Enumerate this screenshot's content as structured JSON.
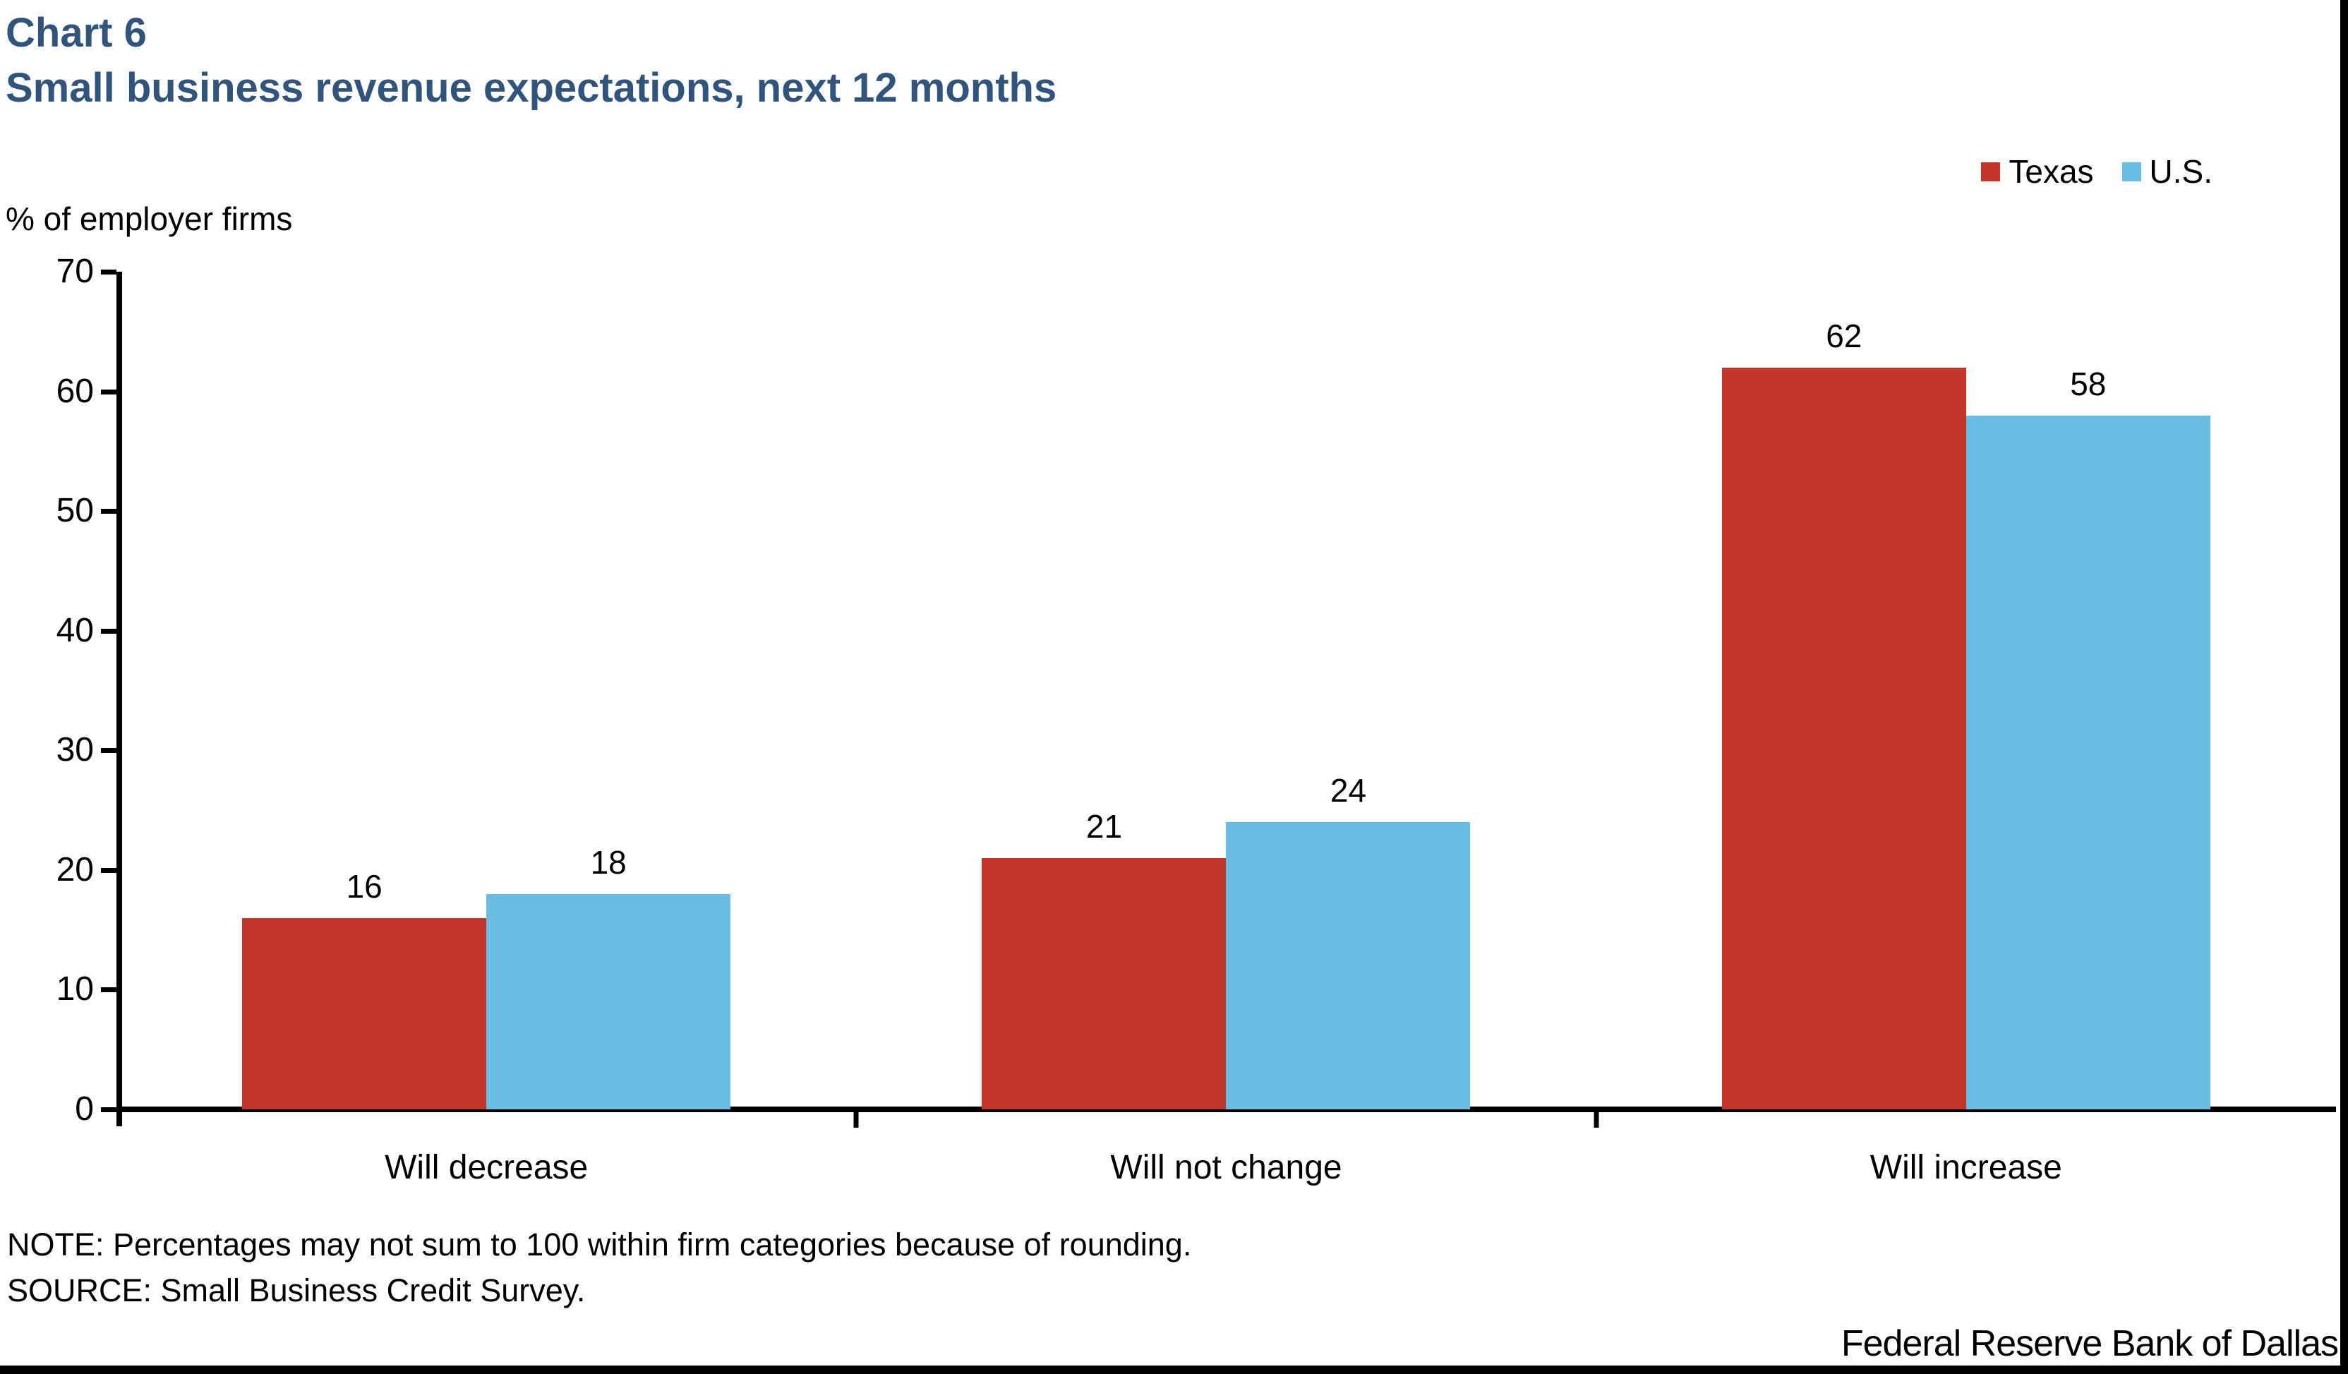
{
  "header": {
    "chart_number": "Chart 6",
    "title": "Small business revenue expectations, next 12 months"
  },
  "axis": {
    "unit_label": "% of employer firms"
  },
  "footnotes": {
    "note": "NOTE: Percentages may not sum to 100 within firm categories because of rounding.",
    "source": "SOURCE: Small Business Credit Survey."
  },
  "footer": {
    "brand": "Federal Reserve Bank of Dallas"
  },
  "colors": {
    "title_blue": "#31547D",
    "texas_red": "#C2362C",
    "us_blue": "#6ABDE2",
    "axis_black": "#000000",
    "frame_black": "#000000"
  },
  "chart_data": {
    "type": "bar",
    "title": "Small business revenue expectations, next 12 months",
    "ylabel": "% of employer firms",
    "xlabel": "",
    "categories": [
      "Will decrease",
      "Will not change",
      "Will increase"
    ],
    "series": [
      {
        "name": "Texas",
        "color": "#C2362C",
        "values": [
          16,
          21,
          62
        ]
      },
      {
        "name": "U.S.",
        "color": "#6ABDE2",
        "values": [
          18,
          24,
          58
        ]
      }
    ],
    "ylim": [
      0,
      70
    ],
    "yticks": [
      0,
      10,
      20,
      30,
      40,
      50,
      60,
      70
    ],
    "grid": false,
    "legend_position": "top-right",
    "bar_value_labels": true
  }
}
